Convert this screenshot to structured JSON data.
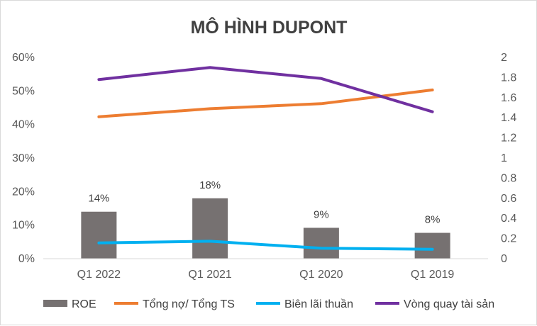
{
  "chart_data": {
    "title": "MÔ HÌNH DUPONT",
    "categories": [
      "Q1 2022",
      "Q1 2021",
      "Q1 2020",
      "Q1 2019"
    ],
    "left_axis": {
      "min": 0,
      "max": 0.6,
      "step": 0.1,
      "ticks": [
        "0%",
        "10%",
        "20%",
        "30%",
        "40%",
        "50%",
        "60%"
      ]
    },
    "right_axis": {
      "min": 0,
      "max": 2,
      "step": 0.2,
      "ticks": [
        "0",
        "0.2",
        "0.4",
        "0.6",
        "0.8",
        "1",
        "1.2",
        "1.4",
        "1.6",
        "1.8",
        "2"
      ]
    },
    "grid": false,
    "legend_position": "bottom",
    "series": [
      {
        "name": "ROE",
        "type": "bar",
        "axis": "left",
        "color": "#767171",
        "values": [
          0.14,
          0.18,
          0.092,
          0.077
        ],
        "labels": [
          "14%",
          "18%",
          "9%",
          "8%"
        ]
      },
      {
        "name": "Tổng nợ/ Tổng TS",
        "type": "line",
        "axis": "left",
        "color": "#ED7D31",
        "values": [
          0.423,
          0.447,
          0.462,
          0.503
        ]
      },
      {
        "name": "Biên lãi thuần",
        "type": "line",
        "axis": "left",
        "color": "#00B0F0",
        "values": [
          0.047,
          0.052,
          0.031,
          0.028
        ]
      },
      {
        "name": "Vòng quay tài sản",
        "type": "line",
        "axis": "right",
        "color": "#7030A0",
        "values": [
          1.78,
          1.9,
          1.79,
          1.46
        ]
      }
    ]
  }
}
